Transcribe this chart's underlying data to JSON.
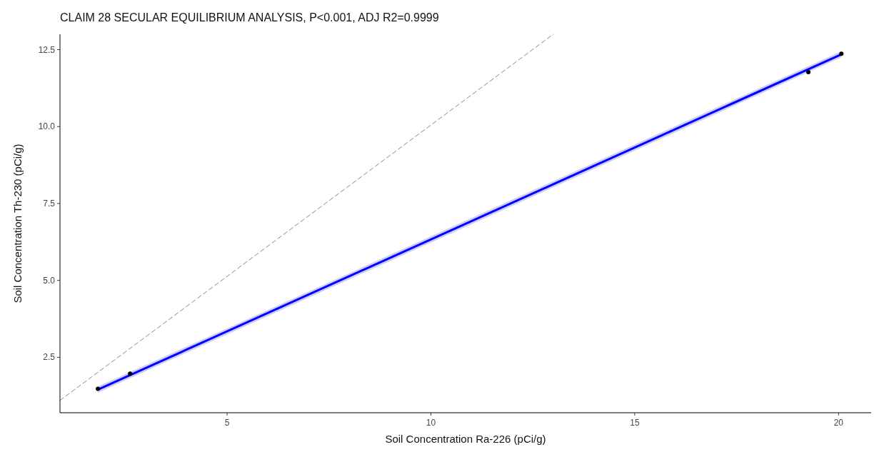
{
  "chart_data": {
    "type": "scatter",
    "title": "CLAIM 28 SECULAR EQUILIBRIUM ANALYSIS, P<0.001, ADJ R2=0.9999",
    "xlabel": "Soil Concentration Ra-226 (pCi/g)",
    "ylabel": "Soil Concentration Th-230 (pCi/g)",
    "xlim": [
      0.9,
      20.8
    ],
    "ylim": [
      0.7,
      13
    ],
    "xticks": [
      5,
      10,
      15,
      20
    ],
    "yticks": [
      {
        "value": 2.5,
        "label": "2.5"
      },
      {
        "value": 5,
        "label": "5.0"
      },
      {
        "value": 7.5,
        "label": "7.5"
      },
      {
        "value": 10,
        "label": "10.0"
      },
      {
        "value": 12.5,
        "label": "12.5"
      }
    ],
    "grid": false,
    "series": [
      {
        "type": "line",
        "color": "#888888",
        "line_style": "dashed",
        "marker": "none",
        "x": [
          0.9,
          13
        ],
        "values": [
          1.1,
          13
        ]
      },
      {
        "type": "line",
        "color": "#0000ff",
        "line_style": "solid",
        "marker": "none",
        "x": [
          1.83,
          20.07
        ],
        "values": [
          1.45,
          12.35
        ],
        "lower": [
          1.35,
          12.25
        ],
        "upper": [
          1.55,
          12.45
        ]
      },
      {
        "color": "#000000",
        "marker": "circle",
        "x": [
          1.83,
          2.62,
          19.26,
          20.07
        ],
        "values": [
          1.48,
          1.97,
          11.77,
          12.37
        ]
      }
    ]
  }
}
